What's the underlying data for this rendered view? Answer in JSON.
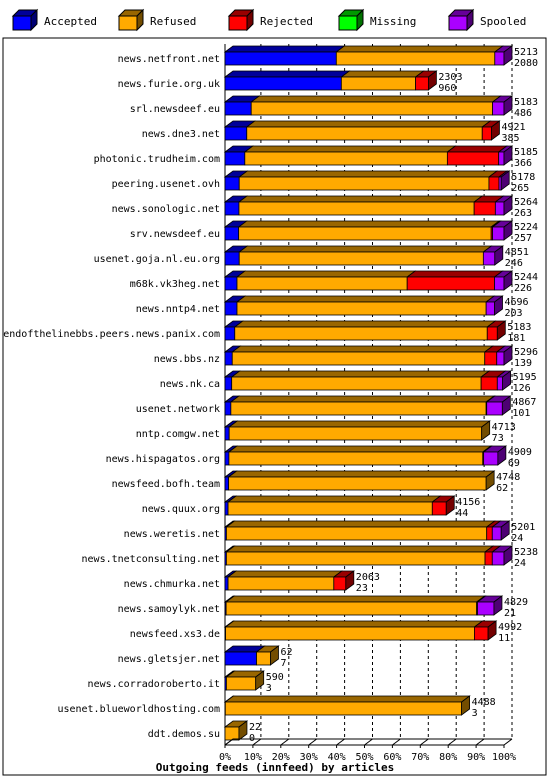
{
  "chart_data": {
    "type": "bar",
    "orientation": "horizontal",
    "stacked": true,
    "title": "Outgoing feeds (innfeed) by articles",
    "xlabel": "",
    "ylabel": "",
    "xlim": [
      0,
      100
    ],
    "x_unit": "%",
    "x_ticks": [
      "0%",
      "10%",
      "20%",
      "30%",
      "40%",
      "50%",
      "60%",
      "70%",
      "80%",
      "90%",
      "100%"
    ],
    "grid": true,
    "legend_position": "top",
    "legend": [
      {
        "name": "Accepted",
        "color": "#0000ff"
      },
      {
        "name": "Refused",
        "color": "#ffaa00"
      },
      {
        "name": "Rejected",
        "color": "#ff0000"
      },
      {
        "name": "Missing",
        "color": "#00ff00"
      },
      {
        "name": "Spooled",
        "color": "#aa00ff"
      }
    ],
    "categories": [
      "news.netfront.net",
      "news.furie.org.uk",
      "srl.newsdeef.eu",
      "news.dne3.net",
      "photonic.trudheim.com",
      "peering.usenet.ovh",
      "news.sonologic.net",
      "srv.newsdeef.eu",
      "usenet.goja.nl.eu.org",
      "m68k.vk3heg.net",
      "news.nntp4.net",
      "endofthelinebbs.peers.news.panix.com",
      "news.bbs.nz",
      "news.nk.ca",
      "usenet.network",
      "nntp.comgw.net",
      "news.hispagatos.org",
      "newsfeed.bofh.team",
      "news.quux.org",
      "news.weretis.net",
      "news.tnetconsulting.net",
      "news.chmurka.net",
      "news.samoylyk.net",
      "newsfeed.xs3.de",
      "news.gletsjer.net",
      "news.corradoroberto.it",
      "usenet.blueworldhosting.com",
      "ddt.demos.su"
    ],
    "offered": [
      5213,
      2303,
      5183,
      4921,
      5185,
      5178,
      5264,
      5224,
      4851,
      5244,
      4696,
      5183,
      5296,
      5195,
      4867,
      4713,
      4909,
      4748,
      4156,
      5201,
      5238,
      2063,
      4829,
      4992,
      62,
      590,
      4488,
      22
    ],
    "accepted": [
      2080,
      960,
      486,
      385,
      366,
      265,
      263,
      257,
      246,
      226,
      203,
      181,
      139,
      126,
      101,
      73,
      69,
      62,
      44,
      24,
      24,
      23,
      21,
      11,
      7,
      3,
      3,
      0
    ],
    "series": [
      {
        "name": "Accepted",
        "values": [
          39.9,
          41.7,
          9.4,
          7.8,
          7.1,
          5.1,
          5.0,
          4.9,
          5.1,
          4.3,
          4.3,
          3.5,
          2.6,
          2.4,
          2.1,
          1.5,
          1.4,
          1.3,
          1.1,
          0.5,
          0.5,
          1.1,
          0.4,
          0.2,
          11.3,
          0.5,
          0.1,
          0
        ]
      },
      {
        "name": "Refused",
        "values": [
          56.8,
          26.6,
          86.5,
          84.4,
          72.6,
          89.5,
          84.3,
          90.5,
          87.5,
          61.0,
          89.3,
          90.5,
          90.5,
          89.4,
          91.5,
          90.5,
          91.0,
          92.3,
          73.2,
          93.3,
          92.7,
          37.9,
          89.8,
          89.2,
          5.0,
          10.5,
          84.7,
          5.0
        ]
      },
      {
        "name": "Rejected",
        "values": [
          0,
          4.6,
          0,
          3.3,
          18.4,
          3.6,
          7.6,
          0.5,
          0,
          31.3,
          0,
          3.6,
          4.3,
          5.8,
          0.2,
          0,
          0.3,
          0,
          5.0,
          2.0,
          2.6,
          4.3,
          0.3,
          4.9,
          0,
          0,
          0,
          0
        ]
      },
      {
        "name": "Missing",
        "values": [
          0,
          0,
          0,
          0,
          0,
          0,
          0,
          0,
          0,
          0,
          0,
          0,
          0,
          0,
          0,
          0,
          0,
          0,
          0,
          0,
          0,
          0,
          0,
          0,
          0,
          0,
          0,
          0
        ]
      },
      {
        "name": "Spooled",
        "values": [
          3.3,
          0,
          4.1,
          0,
          1.9,
          0.8,
          3.1,
          4.1,
          4.1,
          3.4,
          3.0,
          0,
          2.6,
          1.9,
          5.6,
          0,
          5.1,
          0,
          0,
          3.2,
          4.2,
          0,
          5.9,
          0,
          0,
          0,
          0,
          0
        ]
      }
    ]
  }
}
